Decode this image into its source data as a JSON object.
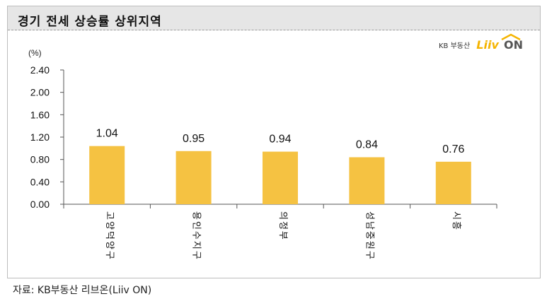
{
  "header": {
    "title": "경기 전세 상승률 상위지역"
  },
  "logo": {
    "kb": "KB 부동산",
    "liiv": "Liiv",
    "on": "ON"
  },
  "source": {
    "text": "자료: KB부동산 리브온(Liiv ON)"
  },
  "colors": {
    "bar": "#f5c242",
    "axis": "#555555"
  },
  "chart_data": {
    "type": "bar",
    "title": "경기 전세 상승률 상위지역",
    "ylabel": "(%)",
    "xlabel": "",
    "ylim": [
      0,
      2.4
    ],
    "yticks": [
      "0.00",
      "0.40",
      "0.80",
      "1.20",
      "1.60",
      "2.00",
      "2.40"
    ],
    "categories": [
      "고양덕양구",
      "용인수지구",
      "의정부",
      "성남중원구",
      "시흥"
    ],
    "values": [
      1.04,
      0.95,
      0.94,
      0.84,
      0.76
    ],
    "data_labels": [
      "1.04",
      "0.95",
      "0.94",
      "0.84",
      "0.76"
    ],
    "grid": false,
    "legend": "none"
  }
}
